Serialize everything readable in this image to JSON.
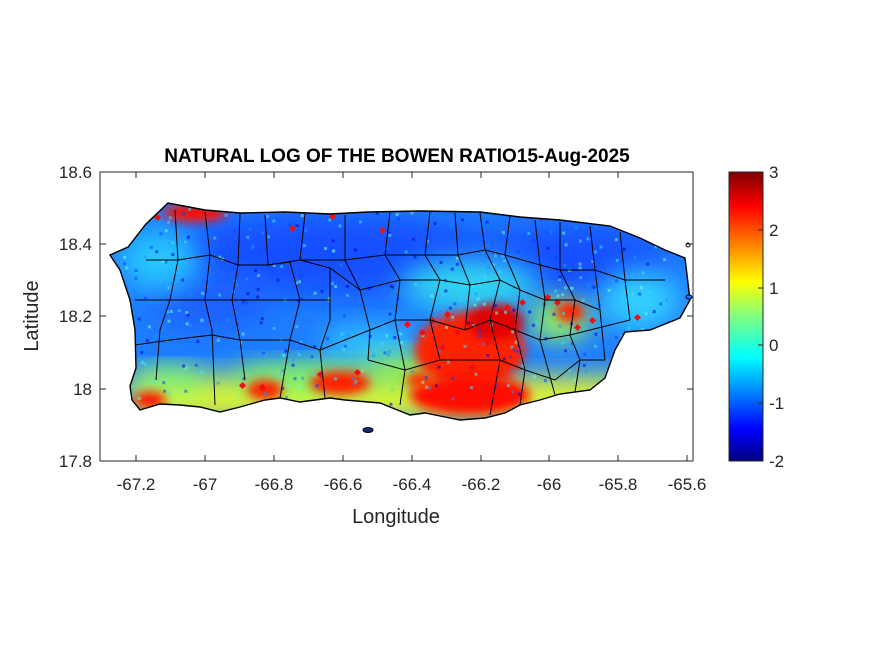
{
  "title": "NATURAL LOG OF THE BOWEN RATIO15-Aug-2025",
  "xlabel": "Longitude",
  "ylabel": "Latitude",
  "x_ticks": [
    "-67.2",
    "-67",
    "-66.8",
    "-66.6",
    "-66.4",
    "-66.2",
    "-66",
    "-65.8",
    "-65.6"
  ],
  "y_ticks": [
    "18.6",
    "18.4",
    "18.2",
    "18",
    "17.8"
  ],
  "colorbar_ticks": [
    "3",
    "2",
    "1",
    "0",
    "-1",
    "-2"
  ],
  "map": {
    "xlim": [
      -67.3,
      -65.58
    ],
    "ylim": [
      17.8,
      18.6
    ],
    "colormap": "jet",
    "clim": [
      -2,
      3
    ],
    "hotspots": [
      {
        "region": "southeast interior",
        "lon": -66.2,
        "lat": 18.12,
        "value": 2.8
      },
      {
        "region": "south coast near Ponce",
        "lon": -66.6,
        "lat": 18.0,
        "value": 2.6
      },
      {
        "region": "south coast Guayama",
        "lon": -66.15,
        "lat": 17.98,
        "value": 2.8
      },
      {
        "region": "northwest corner",
        "lon": -67.12,
        "lat": 18.49,
        "value": 2.6
      },
      {
        "region": "southwest corner",
        "lon": -67.16,
        "lat": 17.97,
        "value": 2.5
      },
      {
        "region": "Caguas area",
        "lon": -65.95,
        "lat": 18.22,
        "value": 2.4
      }
    ]
  }
}
